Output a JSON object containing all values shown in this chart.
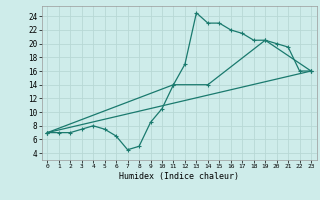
{
  "xlabel": "Humidex (Indice chaleur)",
  "background_color": "#ceecea",
  "grid_color": "#b8d8d5",
  "line_color": "#1a7a6e",
  "xlim": [
    -0.5,
    23.5
  ],
  "ylim": [
    3.0,
    25.5
  ],
  "xticks": [
    0,
    1,
    2,
    3,
    4,
    5,
    6,
    7,
    8,
    9,
    10,
    11,
    12,
    13,
    14,
    15,
    16,
    17,
    18,
    19,
    20,
    21,
    22,
    23
  ],
  "yticks": [
    4,
    6,
    8,
    10,
    12,
    14,
    16,
    18,
    20,
    22,
    24
  ],
  "line1_x": [
    0,
    1,
    2,
    3,
    4,
    5,
    6,
    7,
    8,
    9,
    10,
    11,
    12,
    13,
    14,
    15,
    16,
    17,
    18,
    19,
    20,
    21,
    22,
    23
  ],
  "line1_y": [
    7,
    7,
    7,
    7.5,
    8,
    7.5,
    6.5,
    4.5,
    5,
    8.5,
    10.5,
    14,
    17,
    24.5,
    23,
    23,
    22,
    21.5,
    20.5,
    20.5,
    20,
    19.5,
    16,
    16
  ],
  "line2_x": [
    0,
    23
  ],
  "line2_y": [
    7,
    16
  ],
  "line3_x": [
    0,
    11,
    14,
    19,
    23
  ],
  "line3_y": [
    7,
    14,
    14,
    20.5,
    16
  ]
}
